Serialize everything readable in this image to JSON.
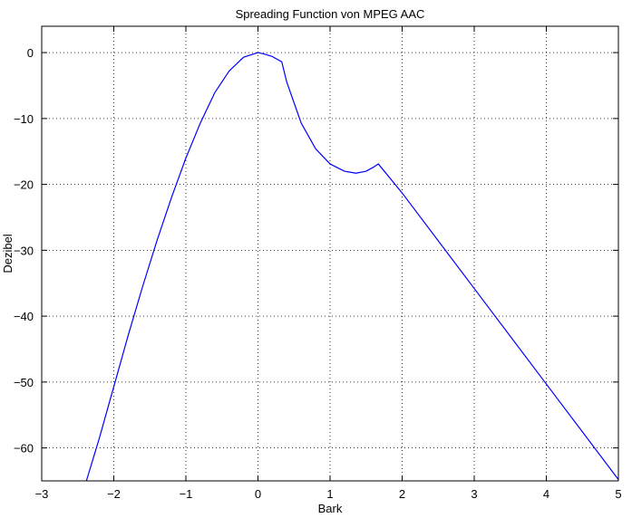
{
  "chart_data": {
    "type": "line",
    "title": "Spreading Function von MPEG AAC",
    "xlabel": "Bark",
    "ylabel": "Dezibel",
    "xlim": [
      -3,
      5
    ],
    "ylim": [
      -65,
      4
    ],
    "xticks": [
      -3,
      -2,
      -1,
      0,
      1,
      2,
      3,
      4,
      5
    ],
    "yticks": [
      0,
      -10,
      -20,
      -30,
      -40,
      -50,
      -60
    ],
    "grid": true,
    "line_color": "#0000ff",
    "series": [
      {
        "x": [
          -2.38,
          -2.2,
          -2.0,
          -1.8,
          -1.6,
          -1.4,
          -1.2,
          -1.0,
          -0.8,
          -0.6,
          -0.4,
          -0.2,
          0.0,
          0.1,
          0.2,
          0.33,
          0.4,
          0.6,
          0.8,
          1.0,
          1.2,
          1.36,
          1.5,
          1.6,
          1.67,
          2.0,
          3.0,
          4.0,
          5.0
        ],
        "y": [
          -65,
          -58.5,
          -50.7,
          -42.9,
          -35.5,
          -28.5,
          -22.0,
          -16.0,
          -10.7,
          -6.1,
          -2.8,
          -0.7,
          0.0,
          -0.25,
          -0.6,
          -1.4,
          -4.5,
          -10.7,
          -14.6,
          -16.9,
          -18.0,
          -18.3,
          -18.0,
          -17.4,
          -16.9,
          -21.3,
          -35.8,
          -50.3,
          -64.8
        ]
      }
    ]
  }
}
